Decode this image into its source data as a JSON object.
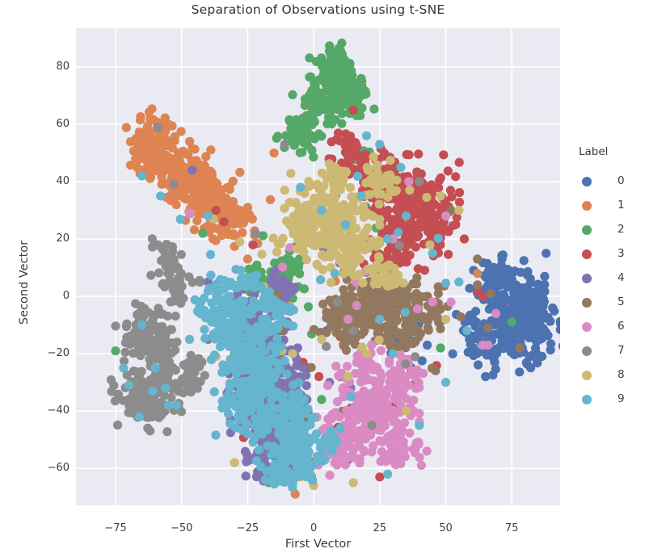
{
  "chart_data": {
    "type": "scatter",
    "title": "Separation of Observations using t-SNE",
    "xlabel": "First Vector",
    "ylabel": "Second Vector",
    "legend_title": "Label",
    "legend_position": "right",
    "grid": true,
    "plot_background": "#eaeaf2",
    "gridline_color": "#ffffff",
    "text_color": "#3b3b3b",
    "xlim": [
      -90,
      93.3
    ],
    "ylim": [
      -72.9,
      93.5
    ],
    "xticks": {
      "values": [
        -75,
        -50,
        -25,
        0,
        25,
        50,
        75
      ],
      "labels": [
        "−75",
        "−50",
        "−25",
        "0",
        "25",
        "50",
        "75"
      ]
    },
    "yticks": {
      "values": [
        -60,
        -40,
        -20,
        0,
        20,
        40,
        60,
        80
      ],
      "labels": [
        "−60",
        "−40",
        "−20",
        "0",
        "20",
        "40",
        "60",
        "80"
      ]
    },
    "marker_radius_px": 5.6,
    "seed": 1337,
    "series": [
      {
        "label": "0",
        "color": "#4C72B0",
        "blobs": [
          [
            73,
            -2,
            6,
            6,
            110
          ],
          [
            80,
            -12,
            6,
            6,
            110
          ],
          [
            66,
            -16,
            5,
            5,
            65
          ],
          [
            85,
            -4,
            3.5,
            6,
            45
          ],
          [
            70,
            6,
            4,
            3.5,
            35
          ],
          [
            33,
            -15,
            2.5,
            2,
            14
          ]
        ],
        "outliers": [
          [
            -13,
            -64
          ],
          [
            43,
            -17
          ],
          [
            5,
            -12
          ],
          [
            18,
            4
          ],
          [
            -2,
            -25
          ],
          [
            88,
            15
          ]
        ],
        "noise": {
          "n": 6,
          "box": [
            5,
            55,
            -25,
            8
          ]
        }
      },
      {
        "label": "1",
        "color": "#DD8452",
        "blobs": [
          [
            -60,
            51,
            5,
            6,
            110
          ],
          [
            -50,
            42,
            6,
            5,
            110
          ],
          [
            -41,
            34,
            5.5,
            4.5,
            95
          ],
          [
            -32,
            27,
            4.5,
            4,
            65
          ]
        ],
        "outliers": [
          [
            -15,
            50
          ],
          [
            62,
            8
          ],
          [
            -7,
            -69
          ],
          [
            25,
            53
          ],
          [
            20,
            30
          ],
          [
            -25,
            13
          ]
        ],
        "noise": {
          "n": 4,
          "box": [
            -20,
            30,
            -10,
            40
          ]
        }
      },
      {
        "label": "2",
        "color": "#55A868",
        "blobs": [
          [
            8,
            78,
            4,
            4.5,
            95
          ],
          [
            4,
            67,
            5,
            4,
            85
          ],
          [
            -4,
            57,
            4.5,
            3.5,
            60
          ],
          [
            12,
            71,
            3,
            3,
            30
          ],
          [
            17,
            68,
            3,
            3,
            28
          ],
          [
            -14,
            6,
            5,
            3.5,
            45
          ],
          [
            -22,
            8,
            2.5,
            2,
            14
          ],
          [
            -8,
            12,
            2.5,
            2.5,
            16
          ],
          [
            18,
            50,
            1.5,
            1.5,
            6
          ]
        ],
        "outliers": [
          [
            -42,
            22
          ],
          [
            -20,
            -62
          ],
          [
            -17,
            -65
          ],
          [
            75,
            -9
          ],
          [
            3,
            -36
          ],
          [
            18,
            30
          ],
          [
            35,
            12
          ],
          [
            -30,
            -20
          ],
          [
            -75,
            -19
          ],
          [
            30,
            -27
          ],
          [
            48,
            -18
          ],
          [
            14,
            67
          ]
        ],
        "noise": {
          "n": 8,
          "box": [
            -30,
            40,
            -45,
            40
          ]
        }
      },
      {
        "label": "3",
        "color": "#C44E52",
        "blobs": [
          [
            36,
            34,
            8,
            6.5,
            160
          ],
          [
            45,
            25,
            5,
            5,
            70
          ],
          [
            22,
            44,
            5,
            4,
            65
          ],
          [
            30,
            14,
            5,
            4,
            50
          ],
          [
            13,
            53,
            3,
            3.5,
            28
          ]
        ],
        "outliers": [
          [
            15,
            65
          ],
          [
            -37,
            30
          ],
          [
            -23,
            18
          ],
          [
            -34,
            26
          ],
          [
            62,
            2
          ],
          [
            64,
            0
          ],
          [
            -14,
            -19
          ],
          [
            -19,
            -10
          ],
          [
            2,
            -28
          ],
          [
            25,
            -63
          ],
          [
            -49,
            -24
          ],
          [
            -4,
            -23
          ],
          [
            10,
            -14
          ],
          [
            57,
            20
          ]
        ],
        "noise": {
          "n": 12,
          "box": [
            -30,
            50,
            -50,
            48
          ]
        }
      },
      {
        "label": "4",
        "color": "#8172B3",
        "blobs": [
          [
            -25,
            -8,
            4,
            5,
            65
          ],
          [
            -18,
            -22,
            5,
            7,
            110
          ],
          [
            -25,
            -36,
            4,
            5,
            60
          ],
          [
            -15,
            -46,
            5,
            4,
            60
          ],
          [
            -14,
            2,
            3,
            3,
            26
          ],
          [
            -8,
            -30,
            3,
            5,
            42
          ],
          [
            -18,
            -58,
            4.5,
            3.5,
            45
          ]
        ],
        "outliers": [
          [
            -46,
            44
          ],
          [
            10,
            -28
          ],
          [
            14,
            -32
          ],
          [
            -40,
            5
          ],
          [
            6,
            -30
          ],
          [
            13,
            -33
          ],
          [
            -32,
            -27
          ]
        ],
        "noise": {
          "n": 9,
          "box": [
            -35,
            20,
            -48,
            20
          ]
        }
      },
      {
        "label": "5",
        "color": "#937860",
        "blobs": [
          [
            24,
            -4,
            8,
            5.5,
            145
          ],
          [
            12,
            -8,
            5.5,
            4.5,
            65
          ],
          [
            36,
            -10,
            5,
            4.5,
            58
          ],
          [
            30,
            3,
            5,
            3.5,
            42
          ],
          [
            45,
            -3,
            3.5,
            3.5,
            26
          ]
        ],
        "outliers": [
          [
            66,
            -11
          ],
          [
            62,
            4
          ],
          [
            67,
            1
          ],
          [
            -18,
            -9
          ],
          [
            -12,
            -12
          ],
          [
            0,
            18
          ],
          [
            37,
            -26
          ],
          [
            13,
            -57
          ],
          [
            -2,
            -57
          ],
          [
            78,
            -18
          ],
          [
            62,
            13
          ],
          [
            -40,
            -15
          ],
          [
            8,
            35
          ],
          [
            52,
            30
          ]
        ],
        "noise": {
          "n": 14,
          "box": [
            -25,
            58,
            -50,
            12
          ]
        }
      },
      {
        "label": "6",
        "color": "#DA8BC3",
        "blobs": [
          [
            22,
            -38,
            7.5,
            6.5,
            175
          ],
          [
            12,
            -52,
            5,
            4.5,
            62
          ],
          [
            31,
            -52,
            5,
            4,
            48
          ],
          [
            34,
            -28,
            4,
            4,
            35
          ],
          [
            20,
            -24,
            3,
            3,
            26
          ]
        ],
        "outliers": [
          [
            -47,
            29
          ],
          [
            69,
            -6
          ],
          [
            64,
            -17
          ],
          [
            66,
            -17
          ],
          [
            16,
            5
          ],
          [
            -9,
            17
          ],
          [
            30,
            20
          ],
          [
            -28,
            -18
          ],
          [
            45,
            -2
          ],
          [
            50,
            28
          ],
          [
            52,
            -2
          ],
          [
            13,
            -8
          ],
          [
            36,
            40
          ]
        ],
        "noise": {
          "n": 10,
          "box": [
            -20,
            45,
            -50,
            15
          ]
        }
      },
      {
        "label": "7",
        "color": "#8C8C8C",
        "blobs": [
          [
            -63,
            -13,
            5,
            5.5,
            90
          ],
          [
            -57,
            -27,
            5,
            5.5,
            80
          ],
          [
            -67,
            -36,
            4.5,
            4,
            55
          ],
          [
            -60,
            -40,
            3,
            3,
            26
          ],
          [
            -55,
            13,
            3.5,
            3,
            26
          ],
          [
            -52,
            3,
            4,
            4,
            34
          ],
          [
            -46,
            -28,
            2.5,
            3.5,
            22
          ]
        ],
        "outliers": [
          [
            -53,
            39
          ],
          [
            -59,
            59
          ],
          [
            -22,
            22
          ],
          [
            9,
            -2
          ],
          [
            15,
            -12
          ],
          [
            40,
            40
          ],
          [
            -5,
            30
          ],
          [
            -11,
            53
          ],
          [
            22,
            -45
          ],
          [
            30,
            8
          ]
        ],
        "noise": {
          "n": 8,
          "box": [
            -45,
            42,
            -25,
            42
          ]
        }
      },
      {
        "label": "8",
        "color": "#CCB974",
        "blobs": [
          [
            7,
            29,
            7.5,
            6.5,
            160
          ],
          [
            -3,
            22,
            5,
            4.5,
            62
          ],
          [
            16,
            15,
            5.5,
            4.5,
            58
          ],
          [
            25,
            40,
            4,
            4,
            34
          ],
          [
            27,
            7,
            3.5,
            3,
            26
          ],
          [
            8,
            43,
            3,
            2.5,
            20
          ]
        ],
        "outliers": [
          [
            -38,
            27
          ],
          [
            -28,
            19
          ],
          [
            48,
            35
          ],
          [
            55,
            30
          ],
          [
            3,
            -15
          ],
          [
            -8,
            -20
          ],
          [
            -20,
            -40
          ],
          [
            0,
            -50
          ],
          [
            -5,
            -63
          ],
          [
            0,
            -66
          ],
          [
            20,
            -20
          ],
          [
            35,
            -40
          ],
          [
            50,
            -8
          ],
          [
            -30,
            -58
          ],
          [
            15,
            -65
          ],
          [
            -37,
            -21
          ],
          [
            44,
            18
          ]
        ],
        "noise": {
          "n": 14,
          "box": [
            -25,
            48,
            -52,
            44
          ]
        }
      },
      {
        "label": "9",
        "color": "#64B5CD",
        "blobs": [
          [
            -33,
            -5,
            5,
            6,
            95
          ],
          [
            -27,
            -16,
            5.5,
            6,
            95
          ],
          [
            -20,
            -30,
            6,
            7,
            115
          ],
          [
            -12,
            -44,
            6,
            5.5,
            95
          ],
          [
            -4,
            -56,
            5,
            4,
            60
          ],
          [
            -28,
            -38,
            4,
            4,
            42
          ],
          [
            -16,
            -8,
            4,
            4,
            42
          ],
          [
            6,
            -52,
            2.5,
            3,
            20
          ],
          [
            -24,
            4,
            3,
            2.5,
            20
          ],
          [
            -12,
            -60,
            4,
            3.5,
            40
          ]
        ],
        "outliers": [
          [
            -65,
            42
          ],
          [
            -58,
            35
          ],
          [
            -47,
            -15
          ],
          [
            -60,
            -25
          ],
          [
            -52,
            -38
          ],
          [
            -65,
            -10
          ],
          [
            -70,
            -31
          ],
          [
            -61,
            -33
          ],
          [
            -56,
            -32
          ],
          [
            -55,
            -38
          ],
          [
            -66,
            -42
          ],
          [
            -72,
            -25
          ],
          [
            25,
            -8
          ],
          [
            30,
            -20
          ],
          [
            14,
            -35
          ],
          [
            10,
            -46
          ],
          [
            40,
            -45
          ],
          [
            28,
            20
          ],
          [
            35,
            28
          ],
          [
            18,
            35
          ],
          [
            45,
            15
          ],
          [
            58,
            -12
          ],
          [
            25,
            53
          ],
          [
            12,
            25
          ],
          [
            -5,
            38
          ],
          [
            3,
            30
          ],
          [
            50,
            -30
          ],
          [
            55,
            5
          ],
          [
            8,
            8
          ],
          [
            -40,
            28
          ],
          [
            28,
            -62
          ],
          [
            20,
            56
          ],
          [
            33,
            45
          ]
        ],
        "noise": {
          "n": 12,
          "box": [
            -55,
            50,
            -50,
            50
          ]
        }
      }
    ]
  }
}
